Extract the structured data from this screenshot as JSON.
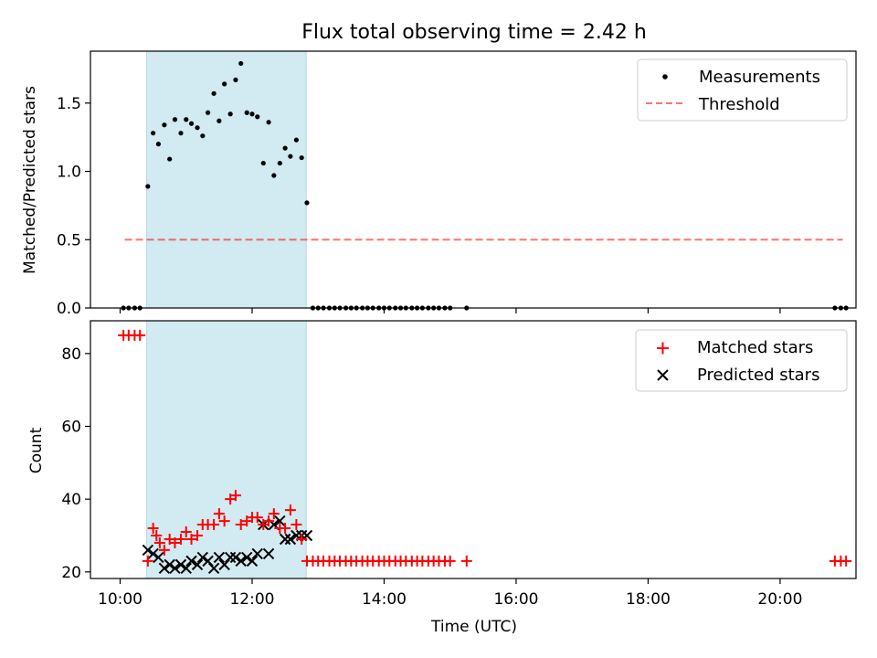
{
  "title": "Flux total observing time = 2.42 h",
  "colors": {
    "band": "#add8e6",
    "measurement": "#000000",
    "threshold": "#ff0000",
    "matched": "#ff0000",
    "predicted": "#000000"
  },
  "chart_data": [
    {
      "type": "scatter",
      "panel": "top",
      "ylabel": "Matched/Predicted stars",
      "xlim": [
        9.55,
        21.15
      ],
      "ylim": [
        0,
        1.88
      ],
      "yticks": [
        "0.0",
        "0.5",
        "1.0",
        "1.5"
      ],
      "ytick_values": [
        0,
        0.5,
        1.0,
        1.5
      ],
      "shaded_interval": [
        10.4,
        12.82
      ],
      "threshold": {
        "y": 0.5,
        "x_range": [
          10.07,
          20.95
        ]
      },
      "legend_position": "upper right",
      "legend": [
        "Measurements",
        "Threshold"
      ],
      "series": [
        {
          "name": "Measurements",
          "x": [
            10.05,
            10.13,
            10.22,
            10.3,
            10.42,
            10.5,
            10.58,
            10.67,
            10.75,
            10.83,
            10.92,
            11.0,
            11.08,
            11.17,
            11.25,
            11.33,
            11.42,
            11.5,
            11.58,
            11.67,
            11.75,
            11.83,
            11.92,
            12.0,
            12.08,
            12.17,
            12.25,
            12.33,
            12.42,
            12.5,
            12.58,
            12.67,
            12.75,
            12.83,
            12.92,
            13.0,
            13.08,
            13.17,
            13.25,
            13.33,
            13.42,
            13.5,
            13.58,
            13.67,
            13.75,
            13.83,
            13.92,
            14.0,
            14.08,
            14.17,
            14.25,
            14.33,
            14.42,
            14.5,
            14.58,
            14.67,
            14.75,
            14.83,
            14.92,
            15.0,
            15.25,
            20.83,
            20.92,
            21.0
          ],
          "y": [
            0,
            0,
            0,
            0,
            0.89,
            1.28,
            1.2,
            1.34,
            1.09,
            1.38,
            1.28,
            1.38,
            1.35,
            1.32,
            1.26,
            1.43,
            1.57,
            1.37,
            1.64,
            1.42,
            1.67,
            1.79,
            1.43,
            1.42,
            1.4,
            1.06,
            1.36,
            0.97,
            1.06,
            1.17,
            1.11,
            1.23,
            1.1,
            0.77,
            0,
            0,
            0,
            0,
            0,
            0,
            0,
            0,
            0,
            0,
            0,
            0,
            0,
            0,
            0,
            0,
            0,
            0,
            0,
            0,
            0,
            0,
            0,
            0,
            0,
            0,
            0,
            0,
            0,
            0
          ]
        }
      ]
    },
    {
      "type": "scatter",
      "panel": "bottom",
      "xlabel": "Time (UTC)",
      "ylabel": "Count",
      "xlim": [
        9.55,
        21.15
      ],
      "ylim": [
        18.2,
        89
      ],
      "xticks": [
        "10:00",
        "12:00",
        "14:00",
        "16:00",
        "18:00",
        "20:00"
      ],
      "xtick_values": [
        10,
        12,
        14,
        16,
        18,
        20
      ],
      "yticks": [
        "20",
        "40",
        "60",
        "80"
      ],
      "ytick_values": [
        20,
        40,
        60,
        80
      ],
      "shaded_interval": [
        10.4,
        12.82
      ],
      "legend_position": "upper right",
      "legend": [
        "Matched stars",
        "Predicted stars"
      ],
      "series": [
        {
          "name": "Matched stars",
          "marker": "+",
          "x": [
            10.05,
            10.13,
            10.22,
            10.3,
            10.42,
            10.5,
            10.55,
            10.6,
            10.67,
            10.75,
            10.83,
            10.92,
            11.0,
            11.08,
            11.17,
            11.25,
            11.33,
            11.42,
            11.5,
            11.58,
            11.67,
            11.75,
            11.83,
            11.92,
            12.0,
            12.08,
            12.17,
            12.25,
            12.33,
            12.42,
            12.5,
            12.58,
            12.67,
            12.75,
            12.83,
            12.92,
            13.0,
            13.08,
            13.17,
            13.25,
            13.33,
            13.42,
            13.5,
            13.58,
            13.67,
            13.75,
            13.83,
            13.92,
            14.0,
            14.08,
            14.17,
            14.25,
            14.33,
            14.42,
            14.5,
            14.58,
            14.67,
            14.75,
            14.83,
            14.92,
            15.0,
            15.25,
            20.83,
            20.92,
            21.0
          ],
          "y": [
            85,
            85,
            85,
            85,
            23,
            32,
            30,
            28,
            26,
            29,
            28,
            29,
            31,
            29,
            30,
            33,
            33,
            33,
            36,
            34,
            40,
            41,
            33,
            34,
            35,
            35,
            33,
            34,
            36,
            32,
            32,
            37,
            33,
            29,
            23,
            23,
            23,
            23,
            23,
            23,
            23,
            23,
            23,
            23,
            23,
            23,
            23,
            23,
            23,
            23,
            23,
            23,
            23,
            23,
            23,
            23,
            23,
            23,
            23,
            23,
            23,
            23,
            23,
            23,
            23
          ]
        },
        {
          "name": "Predicted stars",
          "marker": "x",
          "x": [
            10.42,
            10.5,
            10.58,
            10.67,
            10.75,
            10.83,
            10.92,
            11.0,
            11.08,
            11.17,
            11.25,
            11.33,
            11.42,
            11.5,
            11.58,
            11.67,
            11.75,
            11.83,
            11.92,
            12.0,
            12.08,
            12.17,
            12.25,
            12.33,
            12.42,
            12.5,
            12.58,
            12.67,
            12.75,
            12.83
          ],
          "y": [
            26,
            25,
            24,
            21,
            22,
            21,
            22,
            21,
            23,
            22,
            24,
            23,
            21,
            24,
            22,
            24,
            24,
            23,
            24,
            23,
            25,
            33,
            25,
            33,
            34,
            29,
            29,
            30,
            30,
            30
          ]
        }
      ]
    }
  ]
}
